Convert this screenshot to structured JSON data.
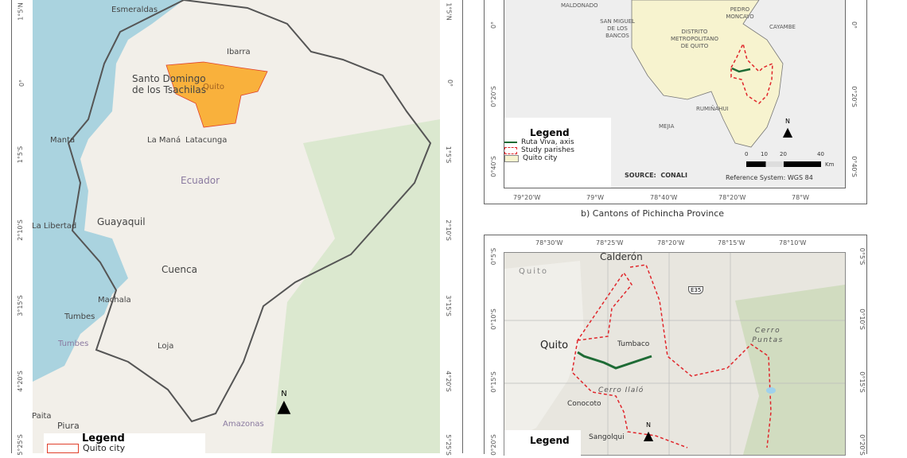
{
  "panel_a": {
    "lat_ticks": [
      "1°5'N",
      "0°",
      "1°5'S",
      "2°10'S",
      "3°15'S",
      "4°20'S",
      "5°25'S"
    ],
    "places": [
      "Esmeraldas",
      "Ibarra",
      "Santo Domingo de los Tsachilas",
      "Quito",
      "Manta",
      "La Maná",
      "Latacunga",
      "Ecuador",
      "Guayaquil",
      "La Libertad",
      "Cuenca",
      "Machala",
      "Tumbes",
      "Tumbes",
      "Loja",
      "Piura",
      "Paita",
      "Amazonas"
    ],
    "north": "N",
    "legend": {
      "title": "Legend",
      "items": [
        "Quito city"
      ]
    },
    "colors": {
      "quito_city": "#f9b13c",
      "sea": "#aad3df",
      "land": "#f2efe9",
      "forest": "#cfe3c0",
      "border": "#555555"
    }
  },
  "panel_b": {
    "places": [
      "MALDONADO",
      "PEDRO MONCAYO",
      "SAN MIGUEL DE LOS BANCOS",
      "CAYAMBE",
      "DISTRITO METROPOLITANO DE QUITO",
      "RUMIÑAHUI",
      "MEJIA"
    ],
    "lat_ticks": [
      "0°",
      "0°20'S",
      "0°40'S"
    ],
    "lon_ticks": [
      "79°20'W",
      "79°W",
      "78°40'W",
      "78°20'W",
      "78°W"
    ],
    "legend": {
      "title": "Legend",
      "items": [
        "Ruta Viva, axis",
        "Study parishes",
        "Quito city"
      ]
    },
    "source": "SOURCE:  CONALI",
    "reference": "Reference System: WGS 84",
    "scale": {
      "labels": [
        "0",
        "10",
        "20",
        "40"
      ],
      "unit": "Km"
    },
    "north": "N",
    "caption": "b) Cantons of Pichincha Province",
    "colors": {
      "ruta_viva": "#1e6b35",
      "study_parishes": "#e0262b",
      "quito_city": "#f7f3cf"
    }
  },
  "panel_c": {
    "lon_ticks": [
      "78°30'W",
      "78°25'W",
      "78°20'W",
      "78°15'W",
      "78°10'W"
    ],
    "lat_ticks": [
      "0°5'S",
      "0°10'S",
      "0°15'S",
      "0°20'S"
    ],
    "places": [
      "Calderón",
      "Quito",
      "Quito",
      "Tumbaco",
      "Cerro Puntas",
      "Cerro Ilaló",
      "Conocoto",
      "Sangolqui"
    ],
    "road_shield": "E35",
    "north": "N",
    "legend": {
      "title": "Legend"
    }
  }
}
